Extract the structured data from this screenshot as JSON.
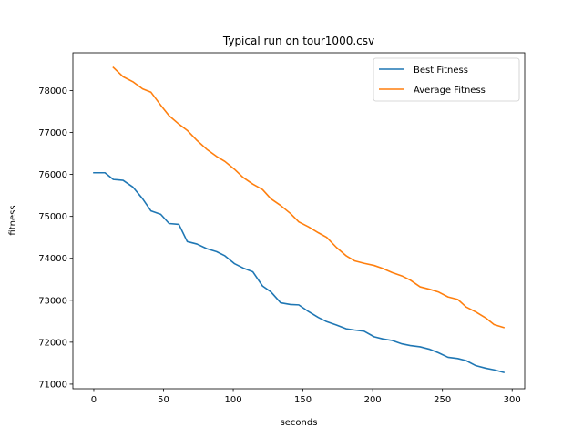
{
  "chart_data": {
    "type": "line",
    "title": "Typical run on tour1000.csv",
    "xlabel": "seconds",
    "ylabel": "fitness",
    "xlim": [
      -15,
      309
    ],
    "ylim": [
      70890,
      78900
    ],
    "xticks": [
      0,
      50,
      100,
      150,
      200,
      250,
      300
    ],
    "yticks": [
      71000,
      72000,
      73000,
      74000,
      75000,
      76000,
      77000,
      78000
    ],
    "grid": false,
    "legend_position": "upper right",
    "series": [
      {
        "name": "Best Fitness",
        "color": "#1f77b4",
        "points": [
          [
            0,
            76040
          ],
          [
            8,
            76040
          ],
          [
            14,
            75880
          ],
          [
            21,
            75860
          ],
          [
            28,
            75700
          ],
          [
            35,
            75420
          ],
          [
            41,
            75130
          ],
          [
            48,
            75050
          ],
          [
            54,
            74830
          ],
          [
            61,
            74810
          ],
          [
            67,
            74400
          ],
          [
            74,
            74340
          ],
          [
            81,
            74230
          ],
          [
            88,
            74160
          ],
          [
            94,
            74060
          ],
          [
            101,
            73870
          ],
          [
            107,
            73770
          ],
          [
            114,
            73680
          ],
          [
            121,
            73340
          ],
          [
            127,
            73200
          ],
          [
            134,
            72940
          ],
          [
            141,
            72900
          ],
          [
            147,
            72890
          ],
          [
            154,
            72730
          ],
          [
            161,
            72590
          ],
          [
            167,
            72490
          ],
          [
            174,
            72410
          ],
          [
            181,
            72320
          ],
          [
            187,
            72290
          ],
          [
            194,
            72260
          ],
          [
            201,
            72130
          ],
          [
            207,
            72080
          ],
          [
            214,
            72040
          ],
          [
            221,
            71960
          ],
          [
            227,
            71920
          ],
          [
            234,
            71890
          ],
          [
            241,
            71830
          ],
          [
            247,
            71750
          ],
          [
            254,
            71640
          ],
          [
            261,
            71610
          ],
          [
            267,
            71560
          ],
          [
            274,
            71440
          ],
          [
            281,
            71380
          ],
          [
            287,
            71340
          ],
          [
            294,
            71280
          ]
        ]
      },
      {
        "name": "Average Fitness",
        "color": "#ff7f0e",
        "points": [
          [
            14,
            78550
          ],
          [
            21,
            78330
          ],
          [
            28,
            78210
          ],
          [
            35,
            78040
          ],
          [
            41,
            77960
          ],
          [
            48,
            77650
          ],
          [
            54,
            77400
          ],
          [
            61,
            77200
          ],
          [
            67,
            77050
          ],
          [
            74,
            76810
          ],
          [
            81,
            76600
          ],
          [
            88,
            76430
          ],
          [
            94,
            76310
          ],
          [
            101,
            76120
          ],
          [
            107,
            75930
          ],
          [
            114,
            75770
          ],
          [
            121,
            75640
          ],
          [
            127,
            75420
          ],
          [
            134,
            75260
          ],
          [
            141,
            75070
          ],
          [
            147,
            74870
          ],
          [
            154,
            74750
          ],
          [
            161,
            74610
          ],
          [
            167,
            74500
          ],
          [
            174,
            74260
          ],
          [
            181,
            74060
          ],
          [
            187,
            73940
          ],
          [
            194,
            73880
          ],
          [
            201,
            73830
          ],
          [
            207,
            73760
          ],
          [
            214,
            73660
          ],
          [
            221,
            73580
          ],
          [
            227,
            73480
          ],
          [
            234,
            73320
          ],
          [
            241,
            73260
          ],
          [
            247,
            73200
          ],
          [
            254,
            73080
          ],
          [
            261,
            73020
          ],
          [
            267,
            72840
          ],
          [
            274,
            72720
          ],
          [
            281,
            72580
          ],
          [
            287,
            72420
          ],
          [
            294,
            72350
          ]
        ]
      }
    ]
  }
}
